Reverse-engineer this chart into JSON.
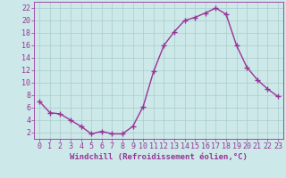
{
  "x": [
    0,
    1,
    2,
    3,
    4,
    5,
    6,
    7,
    8,
    9,
    10,
    11,
    12,
    13,
    14,
    15,
    16,
    17,
    18,
    19,
    20,
    21,
    22,
    23
  ],
  "y": [
    7.0,
    5.2,
    5.0,
    4.0,
    3.0,
    1.8,
    2.2,
    1.8,
    1.8,
    3.0,
    6.2,
    11.8,
    16.0,
    18.2,
    20.0,
    20.5,
    21.2,
    22.0,
    21.0,
    16.0,
    12.5,
    10.5,
    9.0,
    7.8
  ],
  "line_color": "#993399",
  "marker": "+",
  "marker_size": 4,
  "bg_color": "#cce8e8",
  "grid_color": "#aacccc",
  "xlabel": "Windchill (Refroidissement éolien,°C)",
  "xlim": [
    -0.5,
    23.5
  ],
  "ylim": [
    1,
    23
  ],
  "yticks": [
    2,
    4,
    6,
    8,
    10,
    12,
    14,
    16,
    18,
    20,
    22
  ],
  "xticks": [
    0,
    1,
    2,
    3,
    4,
    5,
    6,
    7,
    8,
    9,
    10,
    11,
    12,
    13,
    14,
    15,
    16,
    17,
    18,
    19,
    20,
    21,
    22,
    23
  ],
  "tick_color": "#993399",
  "label_fontsize": 6.5,
  "tick_fontsize": 6.0,
  "linewidth": 1.0,
  "marker_edge_width": 1.0
}
